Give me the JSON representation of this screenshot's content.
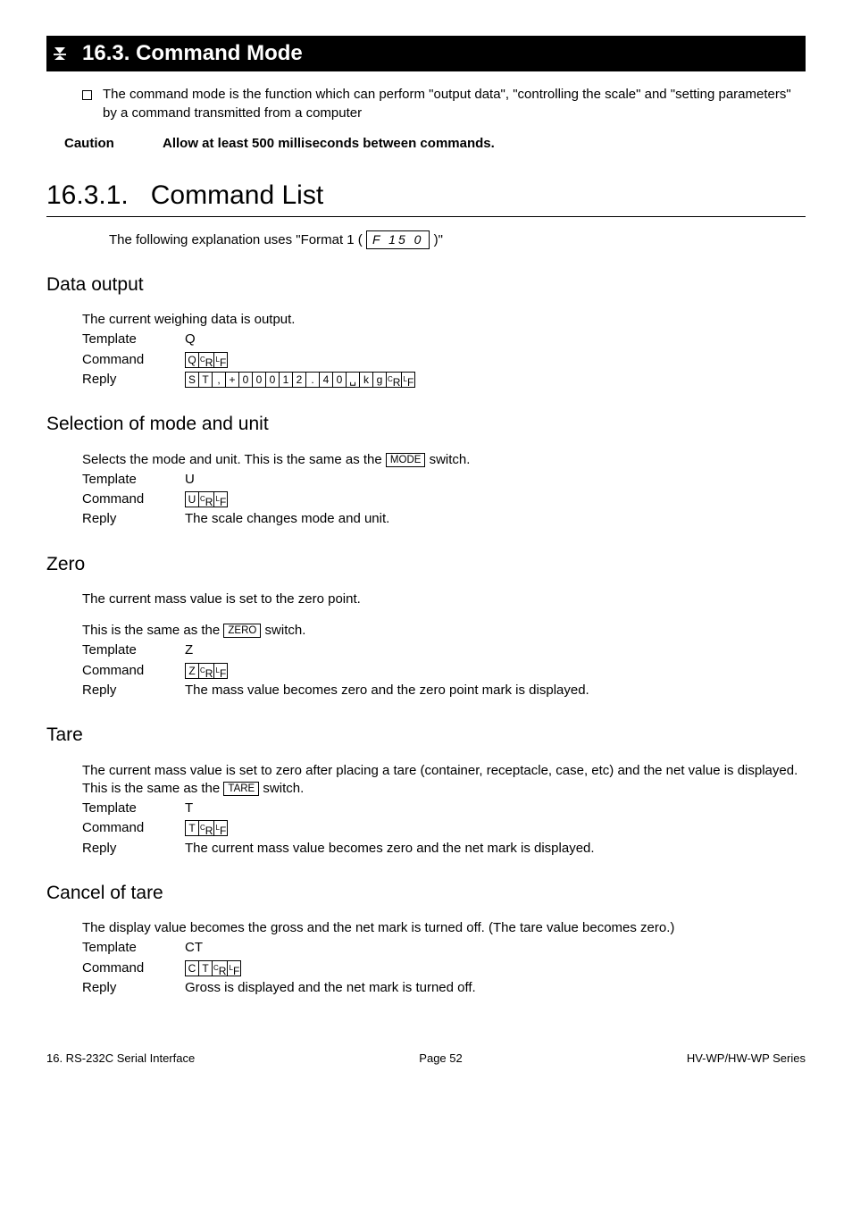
{
  "section": {
    "number": "16.3.",
    "title": "Command Mode",
    "bullet": "The command mode is the function which can perform \"output data\", \"controlling the scale\" and \"setting parameters\" by a command transmitted from a computer",
    "caution_label": "Caution",
    "caution_text": "Allow at least 500 milliseconds between commands."
  },
  "subsection": {
    "number": "16.3.1.",
    "title": "Command List",
    "intro_a": "The following explanation uses \"Format 1 ( ",
    "intro_box": "F 15 0",
    "intro_b": " )\""
  },
  "data_output": {
    "heading": "Data output",
    "desc": "The current weighing data is output.",
    "template_label": "Template",
    "template_val": "Q",
    "command_label": "Command",
    "command_cells": [
      "Q",
      "ᶜR",
      "ᴸF"
    ],
    "reply_label": "Reply",
    "reply_cells": [
      "S",
      "T",
      ",",
      "+",
      "0",
      "0",
      "0",
      "1",
      "2",
      ".",
      "4",
      "0",
      "␣",
      "k",
      "g",
      "ᶜR",
      "ᴸF"
    ]
  },
  "selection": {
    "heading": "Selection of mode and unit",
    "desc_a": "Selects the mode and unit. This is the same as the ",
    "desc_key": "MODE",
    "desc_b": " switch.",
    "template_label": "Template",
    "template_val": "U",
    "command_label": "Command",
    "command_cells": [
      "U",
      "ᶜR",
      "ᴸF"
    ],
    "reply_label": "Reply",
    "reply_text": "The scale changes mode and unit."
  },
  "zero": {
    "heading": "Zero",
    "desc1": "The current mass value is set to the zero point.",
    "desc2_a": "This is the same as the ",
    "desc2_key": "ZERO",
    "desc2_b": " switch.",
    "template_label": "Template",
    "template_val": "Z",
    "command_label": "Command",
    "command_cells": [
      "Z",
      "ᶜR",
      "ᴸF"
    ],
    "reply_label": "Reply",
    "reply_text": "The mass value becomes zero and the zero point mark is displayed."
  },
  "tare": {
    "heading": "Tare",
    "desc_a": "The current mass value is set to zero after placing a tare (container, receptacle, case, etc) and the net value is displayed. This is the same as the ",
    "desc_key": "TARE",
    "desc_b": " switch.",
    "template_label": "Template",
    "template_val": "T",
    "command_label": "Command",
    "command_cells": [
      "T",
      "ᶜR",
      "ᴸF"
    ],
    "reply_label": "Reply",
    "reply_text": "The current mass value becomes zero and the net mark is displayed."
  },
  "cancel_tare": {
    "heading": "Cancel of tare",
    "desc": "The display value becomes the gross and the net mark is turned off. (The tare value becomes zero.)",
    "template_label": "Template",
    "template_val": "CT",
    "command_label": "Command",
    "command_cells": [
      "C",
      "T",
      "ᶜR",
      "ᴸF"
    ],
    "reply_label": "Reply",
    "reply_text": "Gross is displayed and the net mark is turned off."
  },
  "footer": {
    "left": "16. RS-232C Serial Interface",
    "center": "Page 52",
    "right": "HV-WP/HW-WP Series"
  }
}
